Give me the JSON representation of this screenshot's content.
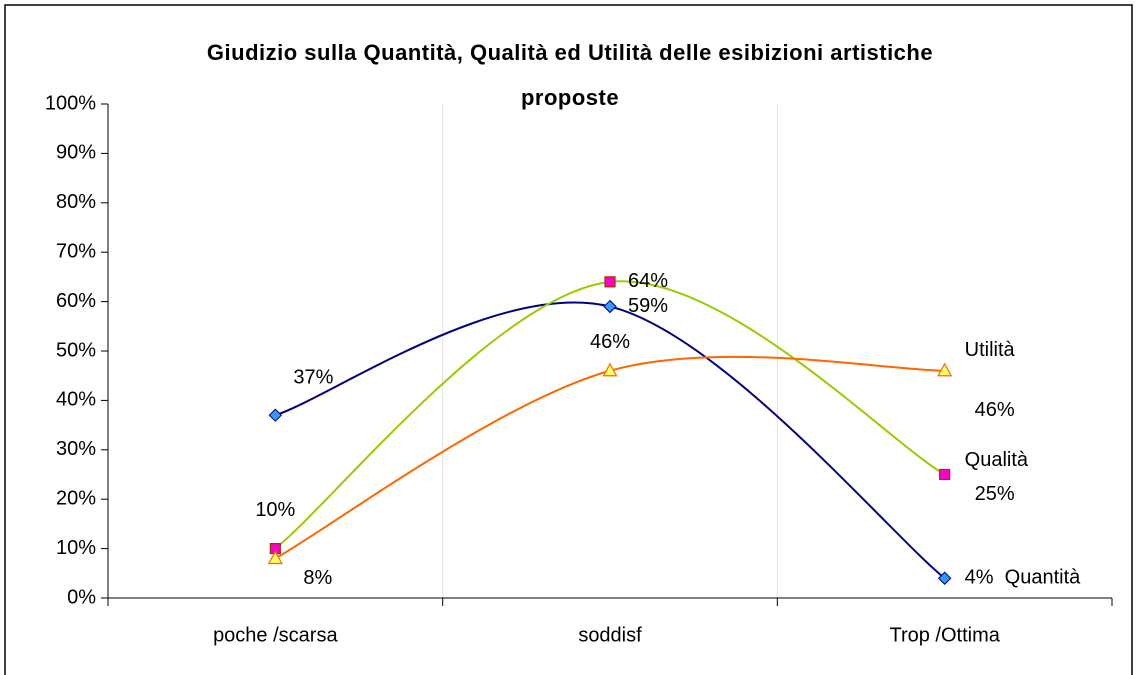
{
  "chart_data": {
    "type": "line",
    "title": "Giudizio sulla Quantità, Qualità ed Utilità delle esibizioni artistiche proposte",
    "categories": [
      "poche /scarsa",
      "soddisf",
      "Trop /Ottima"
    ],
    "series": [
      {
        "name": "Quantità",
        "color": "#000080",
        "marker": "diamond",
        "marker_color": "#3399ff",
        "values": [
          37,
          59,
          4
        ],
        "value_labels": [
          "37%",
          "59%",
          "4%"
        ]
      },
      {
        "name": "Qualità",
        "color": "#99cc00",
        "marker": "square",
        "marker_color": "#ff00cc",
        "values": [
          10,
          64,
          25
        ],
        "value_labels": [
          "10%",
          "64%",
          "25%"
        ]
      },
      {
        "name": "Utilità",
        "color": "#ff6600",
        "marker": "triangle",
        "marker_color": "#ffff66",
        "values": [
          8,
          46,
          46
        ],
        "value_labels": [
          "8%",
          "46%",
          "46%"
        ]
      }
    ],
    "ylim": [
      0,
      100
    ],
    "yticks": [
      {
        "value": 0,
        "label": "0%"
      },
      {
        "value": 10,
        "label": "10%"
      },
      {
        "value": 20,
        "label": "20%"
      },
      {
        "value": 30,
        "label": "30%"
      },
      {
        "value": 40,
        "label": "40%"
      },
      {
        "value": 50,
        "label": "50%"
      },
      {
        "value": 60,
        "label": "60%"
      },
      {
        "value": 70,
        "label": "70%"
      },
      {
        "value": 80,
        "label": "80%"
      },
      {
        "value": 90,
        "label": "90%"
      },
      {
        "value": 100,
        "label": "100%"
      }
    ],
    "smooth": true
  }
}
